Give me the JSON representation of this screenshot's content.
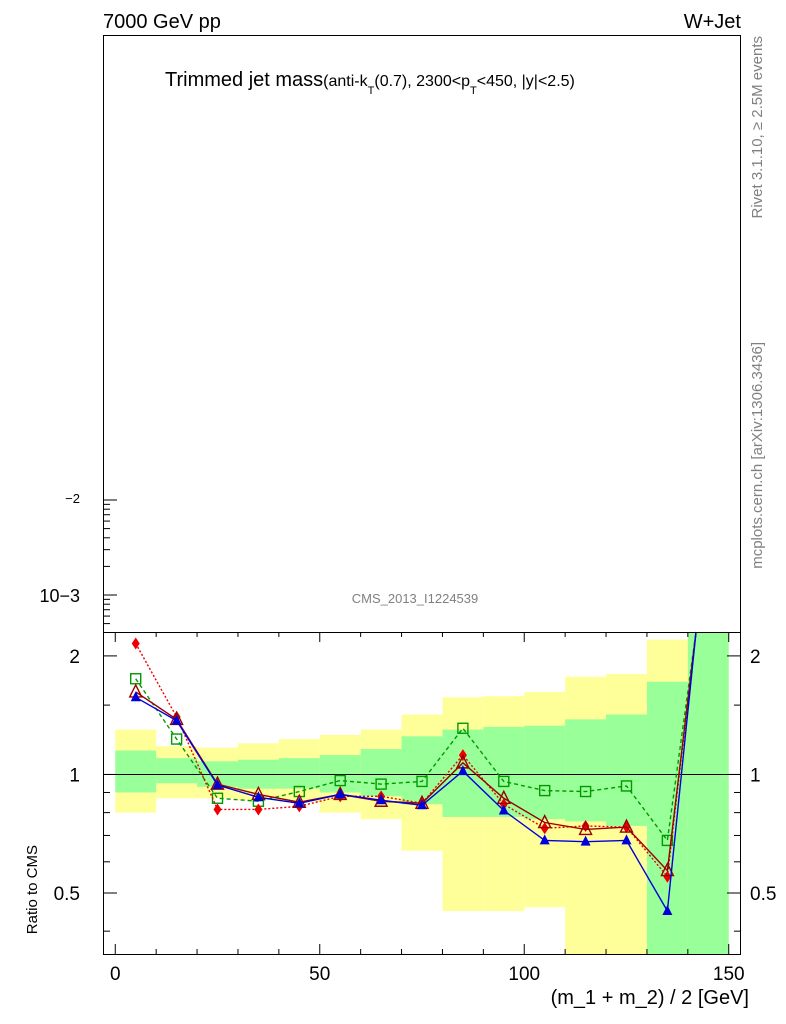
{
  "header": {
    "energy": "7000 GeV pp",
    "process": "W+Jet",
    "title_main": "Trimmed jet mass",
    "title_sub_a": "(anti-k",
    "title_sub_b": "T",
    "title_sub_c": "(0.7), 2300<p",
    "title_sub_d": "T",
    "title_sub_e": "<450, |y|<2.5)",
    "analysis_id": "CMS_2013_I1224539",
    "side_rivet": "Rivet 3.1.10, ≥ 2.5M events",
    "side_mcplots": "mcplots.cern.ch [arXiv:1306.3436]"
  },
  "chart_data": [
    {
      "type": "line",
      "panel": "main",
      "yscale": "log",
      "tick_labels": {
        "y": [
          "10−3",
          "−2"
        ]
      },
      "series": []
    },
    {
      "type": "line",
      "panel": "ratio",
      "xlabel": "(m_1 + m_2) / 2 [GeV]",
      "ylabel": "Ratio to CMS",
      "xlim": [
        -3,
        153
      ],
      "ylim": [
        0.35,
        2.3
      ],
      "yscale": "log",
      "x_ticks": [
        0,
        50,
        100,
        150
      ],
      "x_tick_labels": [
        "0",
        "50",
        "100",
        "150"
      ],
      "y_ticks": [
        0.5,
        1,
        2
      ],
      "y_tick_labels": [
        "0.5",
        "1",
        "2"
      ],
      "reference_line": 1,
      "bins": [
        [
          0,
          10
        ],
        [
          10,
          20
        ],
        [
          20,
          30
        ],
        [
          30,
          40
        ],
        [
          40,
          50
        ],
        [
          50,
          60
        ],
        [
          60,
          70
        ],
        [
          70,
          80
        ],
        [
          80,
          90
        ],
        [
          90,
          100
        ],
        [
          100,
          110
        ],
        [
          110,
          120
        ],
        [
          120,
          130
        ],
        [
          130,
          140
        ],
        [
          140,
          150
        ]
      ],
      "band_inner": {
        "color": "#99ff99",
        "low": [
          0.9,
          0.95,
          0.93,
          0.92,
          0.92,
          0.9,
          0.88,
          0.84,
          0.78,
          0.78,
          0.77,
          0.76,
          0.74,
          0.35,
          0.35
        ],
        "high": [
          1.15,
          1.1,
          1.08,
          1.09,
          1.1,
          1.12,
          1.16,
          1.25,
          1.3,
          1.32,
          1.33,
          1.38,
          1.42,
          1.72,
          2.3
        ]
      },
      "band_outer": {
        "color": "#ffff99",
        "low": [
          0.8,
          0.87,
          0.87,
          0.86,
          0.85,
          0.8,
          0.77,
          0.64,
          0.45,
          0.45,
          0.46,
          0.35,
          0.35,
          0.35,
          0.35
        ],
        "high": [
          1.3,
          1.18,
          1.17,
          1.2,
          1.23,
          1.26,
          1.3,
          1.42,
          1.57,
          1.58,
          1.62,
          1.77,
          1.8,
          2.2,
          2.3
        ]
      },
      "series": [
        {
          "color": "#009900",
          "dash": "4,3",
          "marker": "open-square",
          "x": [
            5,
            15,
            25,
            35,
            45,
            55,
            65,
            75,
            85,
            95,
            105,
            115,
            125,
            135,
            142
          ],
          "y": [
            1.75,
            1.23,
            0.87,
            0.855,
            0.905,
            0.965,
            0.945,
            0.96,
            1.31,
            0.96,
            0.91,
            0.905,
            0.935,
            0.68,
            2.3
          ]
        },
        {
          "color": "#ee0000",
          "dash": "2,2",
          "marker": "filled-diamond",
          "x": [
            5,
            15,
            25,
            35,
            45,
            55,
            65,
            75,
            85,
            95,
            105,
            115,
            125,
            135,
            142
          ],
          "y": [
            2.15,
            1.4,
            0.815,
            0.815,
            0.83,
            0.88,
            0.88,
            0.845,
            1.12,
            0.84,
            0.73,
            0.74,
            0.735,
            0.55,
            2.3
          ]
        },
        {
          "color": "#990000",
          "dash": "",
          "marker": "open-triangle",
          "x": [
            5,
            15,
            25,
            35,
            45,
            55,
            65,
            75,
            85,
            95,
            105,
            115,
            125,
            135,
            142
          ],
          "y": [
            1.62,
            1.38,
            0.945,
            0.89,
            0.85,
            0.89,
            0.855,
            0.845,
            1.07,
            0.87,
            0.755,
            0.725,
            0.735,
            0.57,
            2.3
          ]
        },
        {
          "color": "#0000dd",
          "dash": "",
          "marker": "filled-triangle",
          "x": [
            5,
            15,
            25,
            35,
            45,
            55,
            65,
            75,
            85,
            95,
            105,
            115,
            125,
            135,
            142
          ],
          "y": [
            1.57,
            1.37,
            0.94,
            0.875,
            0.845,
            0.89,
            0.86,
            0.835,
            1.02,
            0.81,
            0.68,
            0.675,
            0.68,
            0.45,
            2.3
          ]
        }
      ]
    }
  ]
}
